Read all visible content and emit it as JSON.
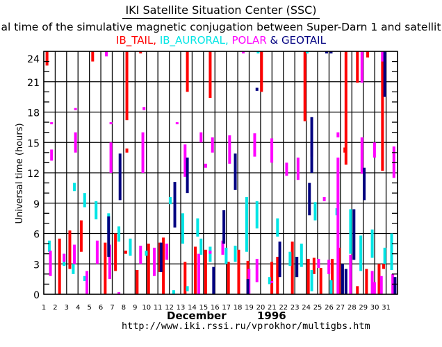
{
  "header": {
    "title": "IKI Satellite Situation Center (SSC)",
    "subtitle": "al time of the simulative magnetic conjugation between Super-Darn 1 and satellit",
    "legend_parts": [
      {
        "text": "IB_TAIL,",
        "color": "#ff0000"
      },
      {
        "text": " IB_AURORAL,",
        "color": "#00e5e5"
      },
      {
        "text": " POLAR",
        "color": "#ff00ff"
      },
      {
        "text": " & ",
        "color": "#000080"
      },
      {
        "text": "GEOTAIL",
        "color": "#000080"
      }
    ]
  },
  "footer": {
    "month": "December",
    "year": "1996",
    "url": "http://www.iki.rssi.ru/vprokhor/multigbs.htm"
  },
  "chart_data": {
    "type": "bar",
    "subtype": "floating-range",
    "title": "IKI Satellite Situation Center (SSC)",
    "xlabel": "December 1996",
    "ylabel": "Universal time (hours)",
    "xlim": [
      1,
      32
    ],
    "ylim": [
      0,
      24
    ],
    "x_ticks": [
      1,
      2,
      3,
      4,
      5,
      6,
      7,
      8,
      9,
      10,
      11,
      12,
      13,
      14,
      15,
      16,
      17,
      18,
      19,
      20,
      21,
      22,
      23,
      24,
      25,
      26,
      27,
      28,
      29,
      30,
      31
    ],
    "y_ticks": [
      0,
      3,
      6,
      9,
      12,
      15,
      18,
      21,
      24
    ],
    "y_minor_step": 1,
    "grid": true,
    "legend": "top-center",
    "series": [
      {
        "name": "IB_TAIL",
        "color": "#ff0000",
        "intervals": [
          [
            1.1,
            22.6,
            24.0
          ],
          [
            2.2,
            0.0,
            5.5
          ],
          [
            3.1,
            2.5,
            6.3
          ],
          [
            4.1,
            4.2,
            7.3
          ],
          [
            5.1,
            23.0,
            24.0
          ],
          [
            6.2,
            0.0,
            5.1
          ],
          [
            7.1,
            2.3,
            6.0
          ],
          [
            8.0,
            4.0,
            4.3
          ],
          [
            8.1,
            17.2,
            24.0
          ],
          [
            8.1,
            14.0,
            14.4
          ],
          [
            9.0,
            0.0,
            2.4
          ],
          [
            9.3,
            23.9,
            24.0
          ],
          [
            10.0,
            0.0,
            5.0
          ],
          [
            11.0,
            2.2,
            5.1
          ],
          [
            11.3,
            0.0,
            5.6
          ],
          [
            13.2,
            0.0,
            3.2
          ],
          [
            13.4,
            20.0,
            24.0
          ],
          [
            14.1,
            0.0,
            4.7
          ],
          [
            15.0,
            0.0,
            4.4
          ],
          [
            15.4,
            19.4,
            24.0
          ],
          [
            17.0,
            0.0,
            3.2
          ],
          [
            17.9,
            0.0,
            4.4
          ],
          [
            18.7,
            0.0,
            3.3
          ],
          [
            19.9,
            20.0,
            24.0
          ],
          [
            20.8,
            0.0,
            3.2
          ],
          [
            21.3,
            0.0,
            3.7
          ],
          [
            22.6,
            0.0,
            5.2
          ],
          [
            23.7,
            17.1,
            24.0
          ],
          [
            24.0,
            0.0,
            3.5
          ],
          [
            24.5,
            2.0,
            3.6
          ],
          [
            25.1,
            0.0,
            2.6
          ],
          [
            26.1,
            0.0,
            3.5
          ],
          [
            26.7,
            0.0,
            4.6
          ],
          [
            27.2,
            14.0,
            14.5
          ],
          [
            27.3,
            12.8,
            24.0
          ],
          [
            28.3,
            0.0,
            0.8
          ],
          [
            28.3,
            20.9,
            24.0
          ],
          [
            29.1,
            0.0,
            2.5
          ],
          [
            29.2,
            23.4,
            24.0
          ],
          [
            30.2,
            0.0,
            3.0
          ],
          [
            30.6,
            2.5,
            3.0
          ],
          [
            30.5,
            12.2,
            24.0
          ]
        ]
      },
      {
        "name": "IB_AURORAL",
        "color": "#00e5e5",
        "intervals": [
          [
            1.3,
            4.2,
            5.3
          ],
          [
            2.6,
            2.8,
            4.0
          ],
          [
            3.4,
            2.0,
            3.0
          ],
          [
            3.5,
            10.2,
            11.0
          ],
          [
            4.4,
            1.3,
            1.8
          ],
          [
            4.4,
            8.6,
            10.0
          ],
          [
            5.4,
            7.4,
            9.2
          ],
          [
            6.5,
            6.1,
            8.0
          ],
          [
            7.4,
            5.2,
            6.7
          ],
          [
            8.4,
            3.8,
            5.5
          ],
          [
            9.8,
            3.8,
            4.3
          ],
          [
            10.5,
            2.0,
            3.2
          ],
          [
            11.9,
            8.9,
            9.6
          ],
          [
            12.2,
            0.0,
            0.4
          ],
          [
            13.0,
            5.0,
            8.0
          ],
          [
            13.4,
            0.3,
            0.8
          ],
          [
            14.3,
            5.7,
            7.5
          ],
          [
            14.6,
            3.9,
            5.5
          ],
          [
            15.4,
            3.2,
            4.7
          ],
          [
            16.8,
            3.0,
            4.6
          ],
          [
            17.6,
            3.2,
            4.8
          ],
          [
            18.6,
            4.2,
            9.6
          ],
          [
            19.6,
            24.0,
            24.0
          ],
          [
            19.5,
            6.5,
            9.2
          ],
          [
            20.6,
            1.0,
            1.7
          ],
          [
            21.3,
            5.7,
            7.5
          ],
          [
            22.4,
            2.8,
            4.2
          ],
          [
            23.4,
            2.7,
            5.0
          ],
          [
            24.3,
            0.3,
            2.4
          ],
          [
            24.6,
            7.3,
            9.1
          ],
          [
            26.0,
            0.0,
            1.4
          ],
          [
            26.5,
            7.8,
            8.5
          ],
          [
            27.7,
            4.0,
            8.4
          ],
          [
            28.6,
            2.3,
            5.8
          ],
          [
            29.6,
            3.6,
            6.4
          ],
          [
            30.7,
            3.0,
            4.6
          ],
          [
            31.3,
            2.4,
            6.0
          ],
          [
            23.9,
            24.0,
            24.0
          ]
        ]
      },
      {
        "name": "POLAR",
        "color": "#ff00ff",
        "intervals": [
          [
            1.4,
            1.8,
            4.3
          ],
          [
            1.5,
            13.2,
            14.3
          ],
          [
            1.5,
            16.8,
            17.0
          ],
          [
            2.6,
            3.2,
            4.0
          ],
          [
            3.5,
            3.0,
            4.9
          ],
          [
            3.6,
            14.0,
            16.0
          ],
          [
            3.6,
            18.2,
            18.4
          ],
          [
            4.6,
            0.0,
            2.3
          ],
          [
            5.5,
            3.0,
            5.3
          ],
          [
            6.3,
            23.5,
            24.0
          ],
          [
            6.6,
            1.5,
            4.9
          ],
          [
            6.7,
            12.0,
            15.0
          ],
          [
            6.7,
            16.8,
            17.0
          ],
          [
            7.4,
            0.0,
            0.2
          ],
          [
            9.3,
            3.0,
            4.8
          ],
          [
            9.5,
            12.0,
            16.0
          ],
          [
            9.6,
            18.2,
            18.5
          ],
          [
            10.5,
            1.8,
            4.6
          ],
          [
            11.6,
            3.4,
            5.0
          ],
          [
            12.5,
            17.0,
            17.0
          ],
          [
            13.2,
            11.6,
            14.8
          ],
          [
            14.4,
            0.0,
            4.0
          ],
          [
            14.6,
            15.0,
            16.0
          ],
          [
            15.0,
            12.5,
            12.9
          ],
          [
            15.4,
            4.0,
            4.3
          ],
          [
            15.6,
            14.0,
            15.5
          ],
          [
            16.5,
            3.9,
            5.3
          ],
          [
            17.1,
            12.9,
            15.7
          ],
          [
            18.3,
            23.9,
            24.0
          ],
          [
            18.8,
            0.0,
            2.5
          ],
          [
            19.3,
            13.6,
            15.9
          ],
          [
            19.5,
            1.2,
            3.5
          ],
          [
            20.8,
            13.0,
            15.4
          ],
          [
            20.8,
            1.1,
            1.3
          ],
          [
            22.1,
            11.7,
            13.0
          ],
          [
            23.1,
            11.3,
            13.5
          ],
          [
            24.3,
            13.6,
            15.1
          ],
          [
            24.9,
            2.6,
            3.5
          ],
          [
            25.4,
            9.2,
            9.6
          ],
          [
            25.8,
            2.0,
            3.4
          ],
          [
            26.6,
            0.0,
            13.5
          ],
          [
            26.6,
            15.5,
            16.0
          ],
          [
            27.7,
            0.0,
            3.9
          ],
          [
            28.7,
            20.9,
            24.0
          ],
          [
            29.6,
            0.0,
            2.3
          ],
          [
            29.8,
            13.5,
            15.0
          ],
          [
            30.4,
            0.0,
            1.8
          ],
          [
            30.5,
            23.0,
            24.0
          ],
          [
            31.4,
            0.0,
            2.0
          ],
          [
            31.5,
            11.5,
            14.6
          ],
          [
            28.7,
            11.9,
            15.5
          ],
          [
            29.8,
            0.0,
            1.2
          ]
        ]
      },
      {
        "name": "GEOTAIL",
        "color": "#000080",
        "intervals": [
          [
            6.5,
            3.7,
            7.7
          ],
          [
            7.5,
            9.3,
            13.9
          ],
          [
            11.1,
            2.2,
            5.1
          ],
          [
            12.3,
            6.6,
            11.1
          ],
          [
            13.4,
            10.0,
            13.5
          ],
          [
            15.7,
            0.0,
            2.7
          ],
          [
            16.6,
            5.0,
            8.3
          ],
          [
            17.6,
            10.3,
            13.9
          ],
          [
            18.7,
            0.0,
            1.5
          ],
          [
            19.5,
            20.1,
            20.4
          ],
          [
            21.5,
            1.7,
            5.2
          ],
          [
            23.0,
            1.7,
            3.7
          ],
          [
            24.1,
            7.8,
            11.0
          ],
          [
            24.3,
            12.0,
            17.5
          ],
          [
            25.6,
            23.8,
            24.0
          ],
          [
            27.0,
            0.0,
            3.0
          ],
          [
            28.0,
            3.4,
            8.4
          ],
          [
            28.9,
            9.3,
            12.5
          ],
          [
            30.7,
            19.5,
            24.0
          ],
          [
            31.6,
            0.0,
            1.7
          ],
          [
            26.0,
            23.8,
            24.0
          ],
          [
            27.3,
            0.0,
            2.5
          ]
        ]
      }
    ]
  }
}
